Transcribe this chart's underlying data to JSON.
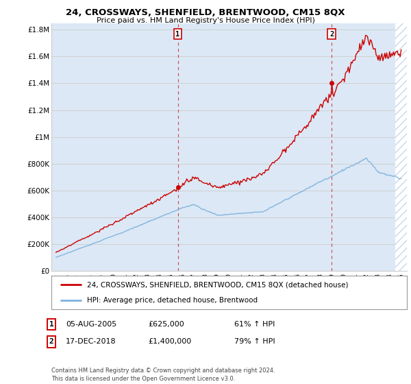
{
  "title": "24, CROSSWAYS, SHENFIELD, BRENTWOOD, CM15 8QX",
  "subtitle": "Price paid vs. HM Land Registry's House Price Index (HPI)",
  "yticks": [
    0,
    200000,
    400000,
    600000,
    800000,
    1000000,
    1200000,
    1400000,
    1600000,
    1800000
  ],
  "ytick_labels": [
    "£0",
    "£200K",
    "£400K",
    "£600K",
    "£800K",
    "£1M",
    "£1.2M",
    "£1.4M",
    "£1.6M",
    "£1.8M"
  ],
  "ylim": [
    0,
    1850000
  ],
  "sale1_date": 2005.59,
  "sale1_price": 625000,
  "sale2_date": 2018.96,
  "sale2_price": 1400000,
  "sale1_info": "05-AUG-2005",
  "sale1_price_str": "£625,000",
  "sale1_hpi": "61% ↑ HPI",
  "sale2_info": "17-DEC-2018",
  "sale2_price_str": "£1,400,000",
  "sale2_hpi": "79% ↑ HPI",
  "legend_line1": "24, CROSSWAYS, SHENFIELD, BRENTWOOD, CM15 8QX (detached house)",
  "legend_line2": "HPI: Average price, detached house, Brentwood",
  "footer": "Contains HM Land Registry data © Crown copyright and database right 2024.\nThis data is licensed under the Open Government Licence v3.0.",
  "hpi_color": "#7ab0de",
  "sale_color": "#cc0000",
  "grid_color": "#cccccc",
  "bg_color": "#ffffff",
  "plot_bg_color": "#dce8f5",
  "hatch_color": "#c8d8e8"
}
